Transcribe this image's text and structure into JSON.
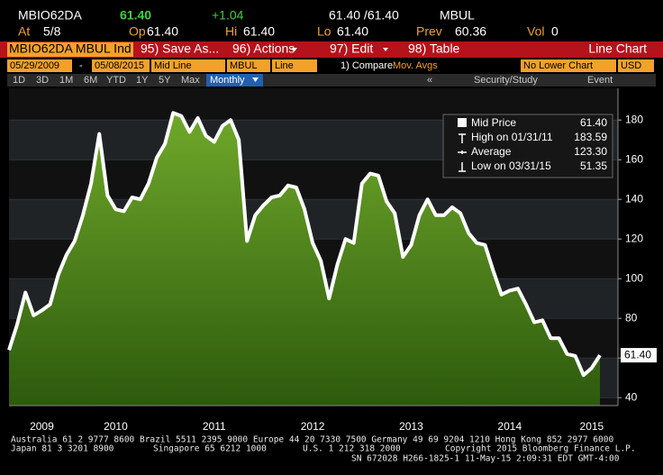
{
  "header": {
    "ticker": "MBIO62DA",
    "last": "61.40",
    "change": "+1.04",
    "bid_ask": "61.40 /61.40",
    "source": "MBUL"
  },
  "quote": [
    {
      "label": "At",
      "value": "5/8"
    },
    {
      "label": "Op",
      "value": "61.40"
    },
    {
      "label": "Hi",
      "value": "61.40"
    },
    {
      "label": "Lo",
      "value": "61.40"
    },
    {
      "label": "Prev",
      "value": "60.36"
    },
    {
      "label": "Vol",
      "value": "0"
    }
  ],
  "toolbar": {
    "security": "MBIO62DA MBUL Ind",
    "buttons": [
      "95) Save As...",
      "96) Actions",
      "97) Edit",
      "98) Table"
    ],
    "chart_type": "Line Chart"
  },
  "inputs": {
    "start": "05/29/2009",
    "dash": "-",
    "end": "05/08/2015",
    "study": "Mid Line",
    "source": "MBUL",
    "style": "Line",
    "compare": "1) Compare",
    "mov_avgs": "Mov. Avgs",
    "lower": "No Lower Chart",
    "currency": "USD"
  },
  "periods": [
    "1D",
    "3D",
    "1M",
    "6M",
    "YTD",
    "1Y",
    "5Y",
    "Max"
  ],
  "frequency": "Monthly",
  "nav": {
    "back": "«",
    "study": "Security/Study",
    "event": "Event"
  },
  "chart_data": {
    "type": "area",
    "categories": [
      null,
      null,
      null,
      null,
      "2009",
      null,
      null,
      null,
      null,
      null,
      null,
      null,
      null,
      "2010",
      null,
      null,
      null,
      null,
      null,
      null,
      null,
      null,
      null,
      null,
      null,
      "2011",
      null,
      null,
      null,
      null,
      null,
      null,
      null,
      null,
      null,
      null,
      null,
      "2012",
      null,
      null,
      null,
      null,
      null,
      null,
      null,
      null,
      null,
      null,
      null,
      "2013",
      null,
      null,
      null,
      null,
      null,
      null,
      null,
      null,
      null,
      null,
      null,
      "2014",
      null,
      null,
      null,
      null,
      null,
      null,
      null,
      null,
      null,
      "2015",
      null
    ],
    "series": [
      {
        "name": "Mid Price",
        "color": "#ffffff",
        "fill": "#5f9a1e",
        "values": [
          64,
          77,
          93,
          81.5,
          84,
          87,
          102,
          112,
          119,
          132,
          148,
          173,
          142,
          135,
          134,
          141,
          140,
          148,
          161,
          168,
          183.59,
          182,
          174,
          181,
          172,
          169,
          177,
          180,
          170,
          119,
          132,
          137,
          141,
          142,
          147,
          146,
          135,
          118,
          109,
          90,
          107,
          120,
          118,
          148,
          153,
          152,
          139,
          133,
          111,
          117,
          132,
          140,
          132,
          132,
          136,
          133,
          123,
          118,
          117,
          104,
          92,
          94,
          95,
          87,
          78,
          79,
          70,
          70,
          62,
          61,
          51.35,
          55,
          61.4
        ],
        "last_label": "61.40"
      }
    ],
    "legend": [
      {
        "label": "Mid Price",
        "value": "61.40"
      },
      {
        "label": "High on 01/31/11",
        "value": "183.59"
      },
      {
        "label": "Average",
        "value": "123.30"
      },
      {
        "label": "Low on 03/31/15",
        "value": "51.35"
      }
    ],
    "ylim": [
      36,
      196
    ],
    "yticks": [
      40,
      60,
      80,
      100,
      120,
      140,
      160,
      180
    ],
    "grid": true
  },
  "footer": {
    "line1": "Australia 61 2 9777 8600 Brazil 5511 2395 9000 Europe 44 20 7330 7500 Germany 49 69 9204 1210 Hong Kong 852 2977 6000",
    "japan": "Japan 81 3 3201 8900",
    "singapore": "Singapore 65 6212 1000",
    "us": "U.S. 1 212 318 2000",
    "copyright": "Copyright 2015 Bloomberg Finance L.P.",
    "sn": "SN 672028 H266-1825-1 11-May-15  2:09:31 EDT  GMT-4:00"
  }
}
